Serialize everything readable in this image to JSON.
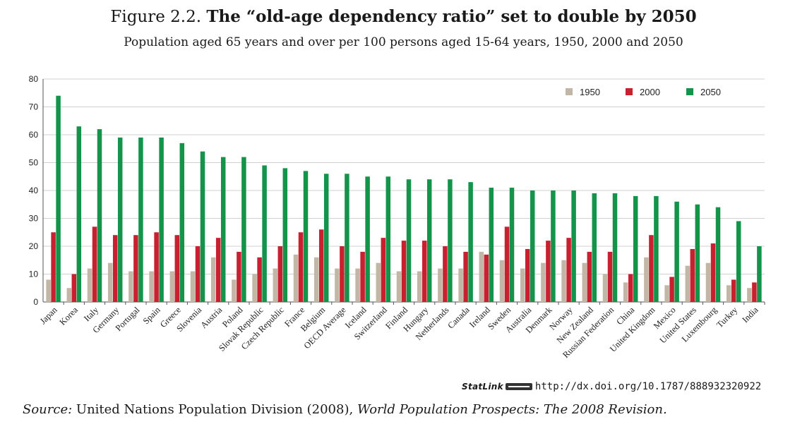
{
  "figure": {
    "number": "Figure 2.2.",
    "title": "The “old-age dependency ratio” set to double by 2050",
    "subtitle": "Population aged 65 years and over per 100 persons aged 15-64 years, 1950, 2000 and 2050"
  },
  "statlink": {
    "label": "StatLink",
    "url": "http://dx.doi.org/10.1787/888932320922"
  },
  "source": {
    "prefix": "Source:",
    "body": " United Nations Population Division (2008), ",
    "work": "World Population Prospects: The 2008 Revision."
  },
  "chart_data": {
    "type": "bar",
    "title": "",
    "xlabel": "",
    "ylabel": "",
    "ylim": [
      0,
      80
    ],
    "yticks": [
      0,
      10,
      20,
      30,
      40,
      50,
      60,
      70,
      80
    ],
    "grid": true,
    "legend_position": "top-right",
    "categories": [
      "Japan",
      "Korea",
      "Italy",
      "Germany",
      "Portugal",
      "Spain",
      "Greece",
      "Slovenia",
      "Austria",
      "Poland",
      "Slovak Republic",
      "Czech Republic",
      "France",
      "Belgium",
      "OECD Average",
      "Iceland",
      "Switzerland",
      "Finland",
      "Hungary",
      "Netherlands",
      "Canada",
      "Ireland",
      "Sweden",
      "Australia",
      "Denmark",
      "Norway",
      "New Zealand",
      "Russian Federation",
      "China",
      "United Kingdom",
      "Mexico",
      "United States",
      "Luxembourg",
      "Turkey",
      "India"
    ],
    "series": [
      {
        "name": "1950",
        "color": "#c2b6a6",
        "values": [
          8,
          5,
          12,
          14,
          11,
          11,
          11,
          11,
          16,
          8,
          10,
          12,
          17,
          16,
          12,
          12,
          14,
          11,
          11,
          12,
          12,
          18,
          15,
          12,
          14,
          15,
          14,
          10,
          7,
          16,
          6,
          13,
          14,
          6,
          5
        ]
      },
      {
        "name": "2000",
        "color": "#c8202e",
        "values": [
          25,
          10,
          27,
          24,
          24,
          25,
          24,
          20,
          23,
          18,
          16,
          20,
          25,
          26,
          20,
          18,
          23,
          22,
          22,
          20,
          18,
          17,
          27,
          19,
          22,
          23,
          18,
          18,
          10,
          24,
          9,
          19,
          21,
          8,
          7
        ]
      },
      {
        "name": "2050",
        "color": "#13944a",
        "values": [
          74,
          63,
          62,
          59,
          59,
          59,
          57,
          54,
          52,
          52,
          49,
          48,
          47,
          46,
          46,
          45,
          45,
          44,
          44,
          44,
          43,
          41,
          41,
          40,
          40,
          40,
          39,
          39,
          38,
          38,
          36,
          35,
          34,
          29,
          20
        ]
      }
    ]
  }
}
